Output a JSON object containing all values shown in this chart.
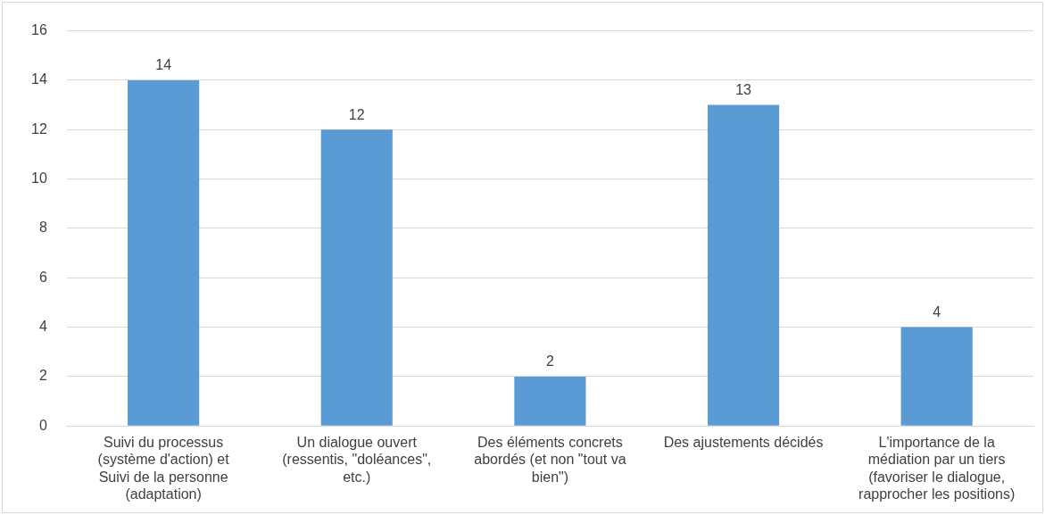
{
  "chart_data": {
    "type": "bar",
    "categories": [
      "Suivi du processus (système d'action) et Suivi de la personne (adaptation)",
      "Un dialogue ouvert (ressentis, \"doléances\", etc.)",
      "Des éléments concrets abordés (et non \"tout va bien\")",
      "Des ajustements décidés",
      "L'importance de la médiation par un tiers (favoriser le dialogue, rapprocher les positions)"
    ],
    "values": [
      14,
      12,
      2,
      13,
      4
    ],
    "color": "#5b9bd5",
    "ylim": [
      0,
      16
    ],
    "yticks": [
      0,
      2,
      4,
      6,
      8,
      10,
      12,
      14,
      16
    ],
    "grid": "y",
    "legend": false,
    "data_labels": true
  }
}
